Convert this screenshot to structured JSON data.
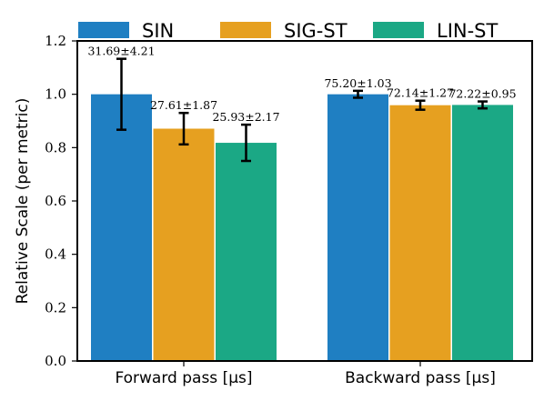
{
  "chart_data": {
    "type": "bar",
    "categories": [
      "Forward pass [μs]",
      "Backward pass [μs]"
    ],
    "series": [
      {
        "name": "SIN",
        "color": "#1f7fc2",
        "values": [
          1.0,
          1.0
        ],
        "errors": [
          0.133,
          0.013
        ],
        "labels": [
          "31.69±4.21",
          "75.20±1.03"
        ]
      },
      {
        "name": "SIG-ST",
        "color": "#e6a020",
        "values": [
          0.871,
          0.959
        ],
        "errors": [
          0.059,
          0.017
        ],
        "labels": [
          "27.61±1.87",
          "72.14±1.27"
        ]
      },
      {
        "name": "LIN-ST",
        "color": "#1ba885",
        "values": [
          0.818,
          0.96
        ],
        "errors": [
          0.068,
          0.013
        ],
        "labels": [
          "25.93±2.17",
          "72.22±0.95"
        ]
      }
    ],
    "ylabel": "Relative Scale (per metric)",
    "xlabel": "",
    "ylim": [
      0,
      1.2
    ],
    "yticks": [
      "0.0",
      "0.2",
      "0.4",
      "0.6",
      "0.8",
      "1.0",
      "1.2"
    ],
    "grid": false,
    "legend_position": "top"
  }
}
